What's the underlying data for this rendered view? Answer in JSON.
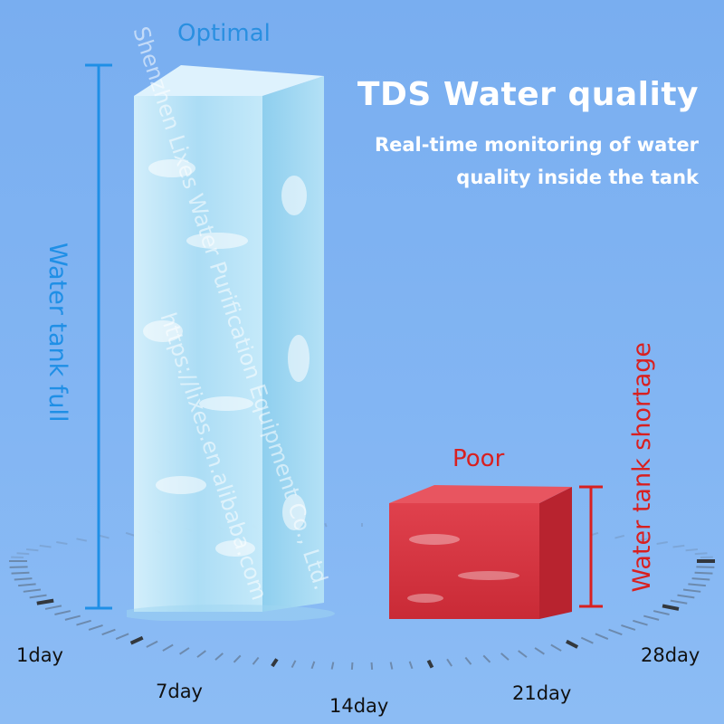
{
  "header": {
    "title": "TDS Water quality",
    "subtitle_line1": "Real-time monitoring of water",
    "subtitle_line2": "quality inside the tank"
  },
  "labels": {
    "optimal": "Optimal",
    "poor": "Poor",
    "tank_full": "Water tank full",
    "tank_shortage": "Water tank shortage"
  },
  "timeline": {
    "day1": "1day",
    "day7": "7day",
    "day14": "14day",
    "day21": "21day",
    "day28": "28day"
  },
  "watermark": {
    "line1": "Shenzhen Lixes Water Purification Equipment Co., Ltd.",
    "line2": "https://lixes.en.alibaba.com"
  },
  "colors": {
    "background": "#7fb3f2",
    "optimal": "#2a8fe0",
    "poor": "#d82020",
    "ice": "#bfe6f7",
    "cube": "#d9343f"
  }
}
